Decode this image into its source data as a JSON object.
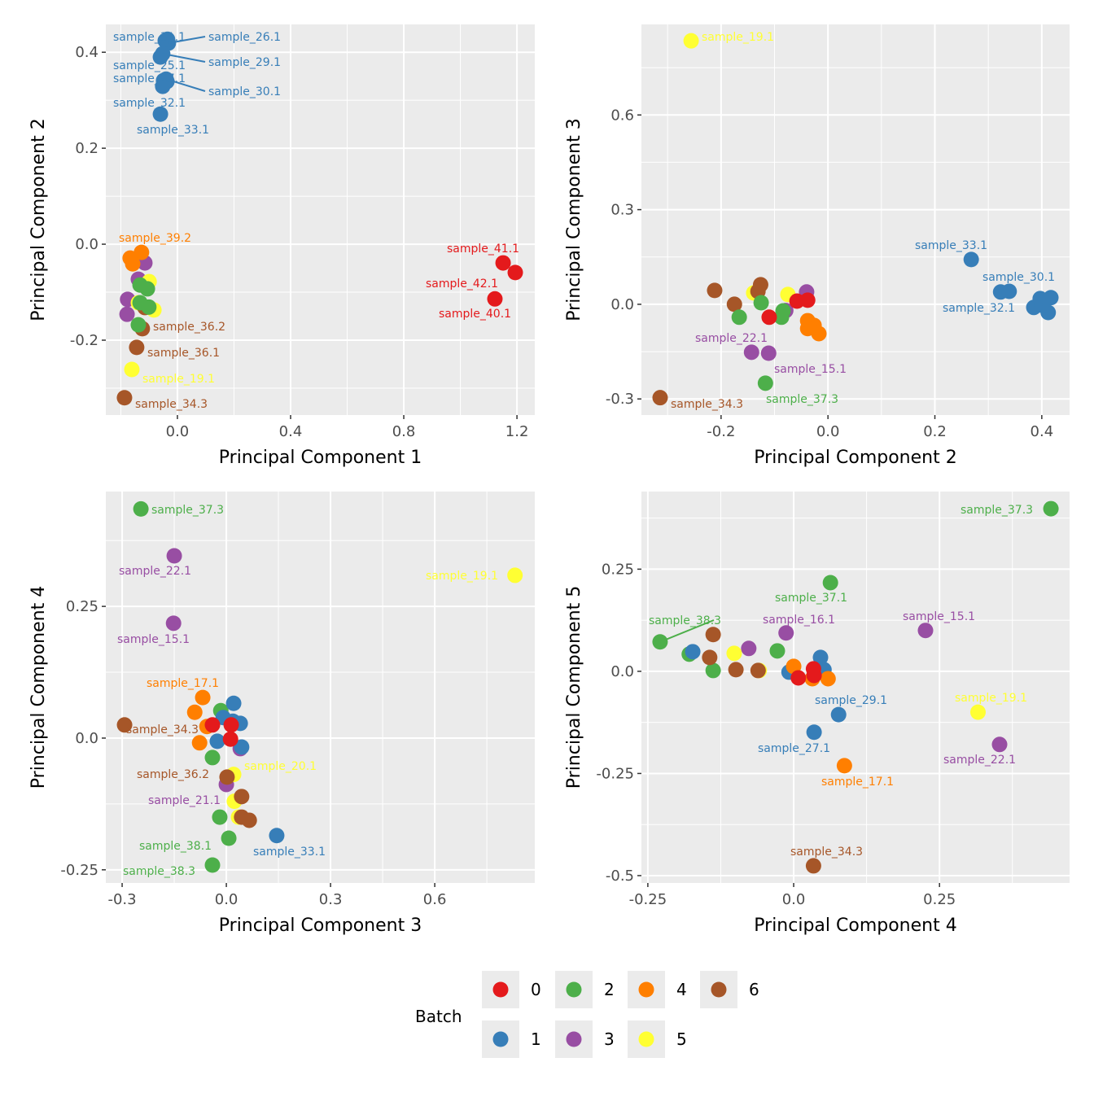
{
  "colors": {
    "0": "#E41A1C",
    "1": "#377EB8",
    "2": "#4DAF4A",
    "3": "#984EA3",
    "4": "#FF7F00",
    "5": "#FFFF33",
    "6": "#A65628"
  },
  "legend": {
    "title": "Batch",
    "placement": "bottom",
    "entries": [
      "0",
      "2",
      "4",
      "6",
      "1",
      "3",
      "5"
    ]
  },
  "chart_data": [
    {
      "type": "scatter",
      "xlabel": "Principal Component 1",
      "ylabel": "Principal Component 2",
      "xlim": [
        -0.253,
        1.263
      ],
      "ylim": [
        -0.356,
        0.458
      ],
      "xticks": [
        0.0,
        0.4,
        0.8,
        1.2
      ],
      "yticks": [
        -0.2,
        0.0,
        0.2,
        0.4
      ],
      "grid": true,
      "points": [
        {
          "x": -0.043,
          "y": 0.424,
          "b": "1",
          "label": "sample_31.1"
        },
        {
          "x": -0.032,
          "y": 0.419,
          "b": "1",
          "label": "sample_26.1"
        },
        {
          "x": -0.035,
          "y": 0.427,
          "b": "1"
        },
        {
          "x": -0.06,
          "y": 0.39,
          "b": "1",
          "label": "sample_25.1"
        },
        {
          "x": -0.052,
          "y": 0.397,
          "b": "1",
          "label": "sample_29.1"
        },
        {
          "x": -0.049,
          "y": 0.341,
          "b": "1",
          "label": "sample_27.1"
        },
        {
          "x": -0.04,
          "y": 0.344,
          "b": "1",
          "label": "sample_30.1"
        },
        {
          "x": -0.037,
          "y": 0.339,
          "b": "1"
        },
        {
          "x": -0.052,
          "y": 0.329,
          "b": "1",
          "label": "sample_32.1"
        },
        {
          "x": -0.06,
          "y": 0.271,
          "b": "1",
          "label": "sample_33.1"
        },
        {
          "x": 1.151,
          "y": -0.039,
          "b": "0",
          "label": "sample_41.1"
        },
        {
          "x": 1.194,
          "y": -0.059,
          "b": "0",
          "label": "sample_42.1"
        },
        {
          "x": 1.122,
          "y": -0.114,
          "b": "0",
          "label": "sample_40.1"
        },
        {
          "x": -0.115,
          "y": -0.039,
          "b": "3"
        },
        {
          "x": -0.138,
          "y": -0.073,
          "b": "3"
        },
        {
          "x": -0.176,
          "y": -0.115,
          "b": "3"
        },
        {
          "x": -0.178,
          "y": -0.146,
          "b": "3"
        },
        {
          "x": -0.127,
          "y": -0.017,
          "b": "4",
          "label": "sample_39.2"
        },
        {
          "x": -0.167,
          "y": -0.029,
          "b": "4"
        },
        {
          "x": -0.158,
          "y": -0.041,
          "b": "4"
        },
        {
          "x": -0.1,
          "y": -0.078,
          "b": "5"
        },
        {
          "x": -0.083,
          "y": -0.137,
          "b": "5"
        },
        {
          "x": -0.138,
          "y": -0.122,
          "b": "5"
        },
        {
          "x": -0.161,
          "y": -0.261,
          "b": "5",
          "label": "sample_19.1"
        },
        {
          "x": -0.115,
          "y": -0.132,
          "b": "6"
        },
        {
          "x": -0.124,
          "y": -0.176,
          "b": "6",
          "label": "sample_36.2"
        },
        {
          "x": -0.144,
          "y": -0.215,
          "b": "6",
          "label": "sample_36.1"
        },
        {
          "x": -0.187,
          "y": -0.32,
          "b": "6",
          "label": "sample_34.3"
        },
        {
          "x": -0.132,
          "y": -0.085,
          "b": "2"
        },
        {
          "x": -0.106,
          "y": -0.093,
          "b": "2"
        },
        {
          "x": -0.132,
          "y": -0.122,
          "b": "2"
        },
        {
          "x": -0.101,
          "y": -0.131,
          "b": "2"
        },
        {
          "x": -0.138,
          "y": -0.168,
          "b": "2"
        }
      ]
    },
    {
      "type": "scatter",
      "xlabel": "Principal Component 2",
      "ylabel": "Principal Component 3",
      "xlim": [
        -0.349,
        0.452
      ],
      "ylim": [
        -0.351,
        0.887
      ],
      "xticks": [
        -0.2,
        0.0,
        0.2,
        0.4
      ],
      "yticks": [
        -0.3,
        0.0,
        0.3,
        0.6
      ],
      "grid": true,
      "points": [
        {
          "x": -0.256,
          "y": 0.835,
          "b": "5",
          "label": "sample_19.1"
        },
        {
          "x": -0.139,
          "y": 0.036,
          "b": "5"
        },
        {
          "x": -0.075,
          "y": 0.031,
          "b": "5"
        },
        {
          "x": 0.268,
          "y": 0.142,
          "b": "1",
          "label": "sample_33.1"
        },
        {
          "x": 0.323,
          "y": 0.039,
          "b": "1",
          "label": "sample_32.1"
        },
        {
          "x": 0.339,
          "y": 0.041,
          "b": "1",
          "label": "sample_30.1"
        },
        {
          "x": 0.397,
          "y": 0.018,
          "b": "1"
        },
        {
          "x": 0.417,
          "y": 0.021,
          "b": "1"
        },
        {
          "x": 0.385,
          "y": -0.01,
          "b": "1"
        },
        {
          "x": 0.412,
          "y": -0.026,
          "b": "1"
        },
        {
          "x": 0.4,
          "y": -0.003,
          "b": "1"
        },
        {
          "x": -0.212,
          "y": 0.044,
          "b": "6"
        },
        {
          "x": -0.175,
          "y": 0.0,
          "b": "6"
        },
        {
          "x": -0.131,
          "y": 0.041,
          "b": "6"
        },
        {
          "x": -0.126,
          "y": 0.062,
          "b": "6"
        },
        {
          "x": -0.314,
          "y": -0.296,
          "b": "6",
          "label": "sample_34.3"
        },
        {
          "x": -0.04,
          "y": 0.039,
          "b": "3"
        },
        {
          "x": -0.079,
          "y": -0.02,
          "b": "3"
        },
        {
          "x": -0.143,
          "y": -0.152,
          "b": "3",
          "label": "sample_22.1"
        },
        {
          "x": -0.111,
          "y": -0.155,
          "b": "3",
          "label": "sample_15.1"
        },
        {
          "x": -0.166,
          "y": -0.041,
          "b": "2"
        },
        {
          "x": -0.125,
          "y": 0.005,
          "b": "2"
        },
        {
          "x": -0.084,
          "y": -0.021,
          "b": "2"
        },
        {
          "x": -0.087,
          "y": -0.041,
          "b": "2"
        },
        {
          "x": -0.117,
          "y": -0.25,
          "b": "2",
          "label": "sample_37.3"
        },
        {
          "x": -0.038,
          "y": -0.052,
          "b": "4"
        },
        {
          "x": -0.026,
          "y": -0.067,
          "b": "4"
        },
        {
          "x": -0.038,
          "y": -0.077,
          "b": "4"
        },
        {
          "x": -0.017,
          "y": -0.093,
          "b": "4"
        },
        {
          "x": -0.058,
          "y": 0.01,
          "b": "0"
        },
        {
          "x": -0.038,
          "y": 0.013,
          "b": "0"
        },
        {
          "x": -0.11,
          "y": -0.041,
          "b": "0"
        }
      ]
    },
    {
      "type": "scatter",
      "xlabel": "Principal Component 3",
      "ylabel": "Principal Component 4",
      "xlim": [
        -0.347,
        0.888
      ],
      "ylim": [
        -0.275,
        0.468
      ],
      "xticks": [
        -0.3,
        0.0,
        0.3,
        0.6
      ],
      "yticks": [
        -0.25,
        0.0,
        0.25
      ],
      "grid": true,
      "points": [
        {
          "x": -0.246,
          "y": 0.435,
          "b": "2",
          "label": "sample_37.3"
        },
        {
          "x": -0.016,
          "y": 0.052,
          "b": "2"
        },
        {
          "x": -0.04,
          "y": -0.037,
          "b": "2"
        },
        {
          "x": -0.019,
          "y": -0.15,
          "b": "2"
        },
        {
          "x": 0.007,
          "y": -0.19,
          "b": "2",
          "label": "sample_38.1"
        },
        {
          "x": -0.04,
          "y": -0.241,
          "b": "2",
          "label": "sample_38.3"
        },
        {
          "x": -0.15,
          "y": 0.346,
          "b": "3",
          "label": "sample_22.1"
        },
        {
          "x": -0.152,
          "y": 0.218,
          "b": "3",
          "label": "sample_15.1"
        },
        {
          "x": 0.04,
          "y": -0.02,
          "b": "3"
        },
        {
          "x": 0.0,
          "y": -0.088,
          "b": "3",
          "label": "sample_21.1"
        },
        {
          "x": 0.831,
          "y": 0.309,
          "b": "5",
          "label": "sample_19.1"
        },
        {
          "x": 0.021,
          "y": -0.069,
          "b": "5",
          "label": "sample_20.1"
        },
        {
          "x": 0.023,
          "y": -0.12,
          "b": "5"
        },
        {
          "x": 0.035,
          "y": -0.15,
          "b": "5"
        },
        {
          "x": -0.068,
          "y": 0.077,
          "b": "4",
          "label": "sample_17.1"
        },
        {
          "x": -0.091,
          "y": 0.049,
          "b": "4"
        },
        {
          "x": -0.056,
          "y": 0.022,
          "b": "4"
        },
        {
          "x": -0.077,
          "y": -0.009,
          "b": "4"
        },
        {
          "x": 0.021,
          "y": 0.066,
          "b": "1"
        },
        {
          "x": -0.009,
          "y": 0.039,
          "b": "1"
        },
        {
          "x": 0.019,
          "y": 0.032,
          "b": "1"
        },
        {
          "x": 0.04,
          "y": 0.028,
          "b": "1"
        },
        {
          "x": -0.026,
          "y": -0.006,
          "b": "1"
        },
        {
          "x": 0.044,
          "y": -0.017,
          "b": "1"
        },
        {
          "x": 0.145,
          "y": -0.185,
          "b": "1",
          "label": "sample_33.1"
        },
        {
          "x": -0.04,
          "y": 0.025,
          "b": "0"
        },
        {
          "x": 0.014,
          "y": 0.025,
          "b": "0"
        },
        {
          "x": 0.012,
          "y": -0.002,
          "b": "0"
        },
        {
          "x": -0.293,
          "y": 0.025,
          "b": "6",
          "label": "sample_34.3"
        },
        {
          "x": 0.002,
          "y": -0.074,
          "b": "6",
          "label": "sample_36.2"
        },
        {
          "x": 0.044,
          "y": -0.111,
          "b": "6"
        },
        {
          "x": 0.044,
          "y": -0.15,
          "b": "6"
        },
        {
          "x": 0.066,
          "y": -0.156,
          "b": "6"
        }
      ]
    },
    {
      "type": "scatter",
      "xlabel": "Principal Component 4",
      "ylabel": "Principal Component 5",
      "xlim": [
        -0.261,
        0.473
      ],
      "ylim": [
        -0.518,
        0.44
      ],
      "xticks": [
        -0.25,
        0.0,
        0.25
      ],
      "yticks": [
        -0.5,
        -0.25,
        0.0,
        0.25
      ],
      "grid": true,
      "points": [
        {
          "x": 0.441,
          "y": 0.398,
          "b": "2",
          "label": "sample_37.3"
        },
        {
          "x": 0.063,
          "y": 0.217,
          "b": "2",
          "label": "sample_37.1"
        },
        {
          "x": -0.229,
          "y": 0.072,
          "b": "2",
          "label": "sample_38.3"
        },
        {
          "x": -0.179,
          "y": 0.042,
          "b": "2"
        },
        {
          "x": -0.138,
          "y": 0.002,
          "b": "2"
        },
        {
          "x": -0.028,
          "y": 0.05,
          "b": "2"
        },
        {
          "x": -0.173,
          "y": 0.048,
          "b": "1"
        },
        {
          "x": -0.008,
          "y": -0.002,
          "b": "1"
        },
        {
          "x": 0.046,
          "y": 0.034,
          "b": "1"
        },
        {
          "x": 0.052,
          "y": 0.004,
          "b": "1"
        },
        {
          "x": 0.077,
          "y": -0.106,
          "b": "1",
          "label": "sample_29.1"
        },
        {
          "x": 0.035,
          "y": -0.149,
          "b": "1",
          "label": "sample_27.1"
        },
        {
          "x": -0.102,
          "y": 0.044,
          "b": "5"
        },
        {
          "x": -0.059,
          "y": 0.002,
          "b": "5"
        },
        {
          "x": 0.316,
          "y": -0.1,
          "b": "5",
          "label": "sample_19.1"
        },
        {
          "x": -0.138,
          "y": 0.09,
          "b": "6"
        },
        {
          "x": -0.144,
          "y": 0.034,
          "b": "6"
        },
        {
          "x": -0.099,
          "y": 0.004,
          "b": "6"
        },
        {
          "x": -0.061,
          "y": 0.002,
          "b": "6"
        },
        {
          "x": 0.034,
          "y": -0.476,
          "b": "6",
          "label": "sample_34.3"
        },
        {
          "x": -0.077,
          "y": 0.056,
          "b": "3"
        },
        {
          "x": -0.013,
          "y": 0.094,
          "b": "3",
          "label": "sample_16.1"
        },
        {
          "x": 0.226,
          "y": 0.1,
          "b": "3",
          "label": "sample_15.1"
        },
        {
          "x": 0.353,
          "y": -0.179,
          "b": "3",
          "label": "sample_22.1"
        },
        {
          "x": 0.0,
          "y": 0.012,
          "b": "4"
        },
        {
          "x": 0.032,
          "y": -0.018,
          "b": "4"
        },
        {
          "x": 0.059,
          "y": -0.018,
          "b": "4"
        },
        {
          "x": 0.087,
          "y": -0.231,
          "b": "4",
          "label": "sample_17.1"
        },
        {
          "x": 0.008,
          "y": -0.016,
          "b": "0"
        },
        {
          "x": 0.034,
          "y": 0.006,
          "b": "0"
        },
        {
          "x": 0.035,
          "y": -0.01,
          "b": "0"
        }
      ]
    }
  ]
}
